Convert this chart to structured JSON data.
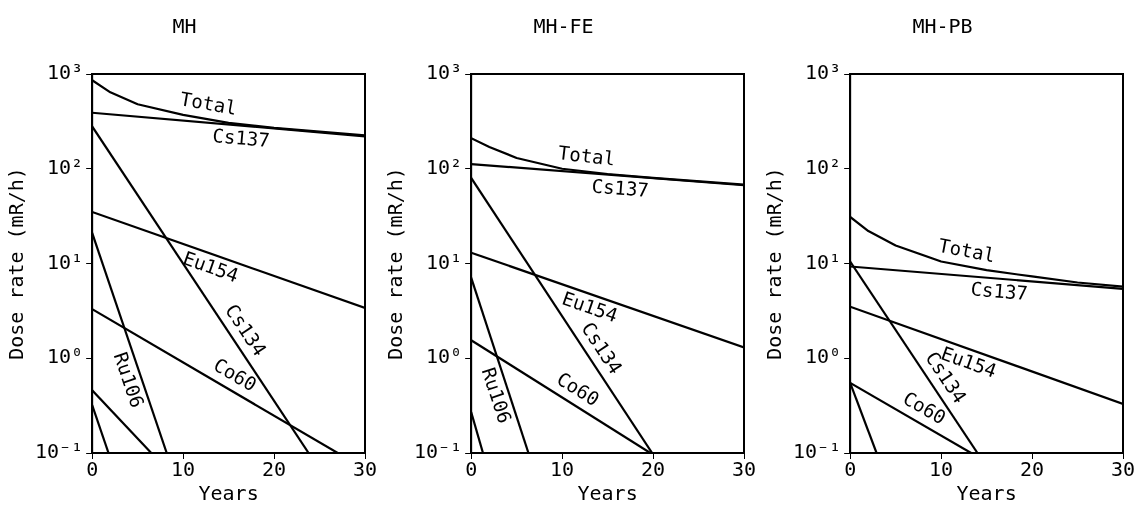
{
  "chart_data": [
    {
      "type": "line",
      "title": "MH",
      "xlabel": "Years",
      "ylabel": "Dose rate (mR/h)",
      "log": "y",
      "grid": false,
      "xlim": [
        0,
        30
      ],
      "xticks": [
        0,
        10,
        20,
        30
      ],
      "ylim": [
        0.1,
        1000
      ],
      "yticks": [
        {
          "value": 0.1,
          "label": "10⁻¹"
        },
        {
          "value": 1,
          "label": "10⁰"
        },
        {
          "value": 10,
          "label": "10¹"
        },
        {
          "value": 100,
          "label": "10²"
        },
        {
          "value": 1000,
          "label": "10³"
        }
      ],
      "series": [
        {
          "name": "Total",
          "color": "#000000",
          "x": [
            0,
            2,
            5,
            10,
            15,
            20,
            30
          ],
          "values": [
            860,
            640,
            480,
            370,
            305,
            270,
            225
          ]
        },
        {
          "name": "Cs137",
          "color": "#000000",
          "x": [
            0,
            30
          ],
          "values": [
            390,
            220
          ]
        },
        {
          "name": "Cs134",
          "color": "#000000",
          "x": [
            0,
            23.8
          ],
          "values": [
            280,
            0.1
          ]
        },
        {
          "name": "Eu154",
          "color": "#000000",
          "x": [
            0,
            30
          ],
          "values": [
            35,
            3.4
          ]
        },
        {
          "name": "Co60",
          "color": "#000000",
          "x": [
            0,
            27
          ],
          "values": [
            3.3,
            0.1
          ]
        },
        {
          "name": "Ru106",
          "color": "#000000",
          "x": [
            0,
            8.2
          ],
          "values": [
            21,
            0.1
          ]
        },
        {
          "color": "#000000",
          "x": [
            0,
            6.5
          ],
          "values": [
            0.46,
            0.1
          ]
        },
        {
          "color": "#000000",
          "x": [
            0,
            1.8
          ],
          "values": [
            0.32,
            0.1
          ]
        }
      ]
    },
    {
      "type": "line",
      "title": "MH-FE",
      "xlabel": "Years",
      "ylabel": "Dose rate (mR/h)",
      "log": "y",
      "grid": false,
      "xlim": [
        0,
        30
      ],
      "xticks": [
        0,
        10,
        20,
        30
      ],
      "ylim": [
        0.1,
        1000
      ],
      "yticks": [
        {
          "value": 0.1,
          "label": "10⁻¹"
        },
        {
          "value": 1,
          "label": "10⁰"
        },
        {
          "value": 10,
          "label": "10¹"
        },
        {
          "value": 100,
          "label": "10²"
        },
        {
          "value": 1000,
          "label": "10³"
        }
      ],
      "series": [
        {
          "name": "Total",
          "color": "#000000",
          "x": [
            0,
            2,
            5,
            10,
            15,
            20,
            30
          ],
          "values": [
            210,
            170,
            130,
            100,
            88,
            80,
            68
          ]
        },
        {
          "name": "Cs137",
          "color": "#000000",
          "x": [
            0,
            30
          ],
          "values": [
            112,
            67
          ]
        },
        {
          "name": "Cs134",
          "color": "#000000",
          "x": [
            0,
            19.9
          ],
          "values": [
            80,
            0.1
          ]
        },
        {
          "name": "Eu154",
          "color": "#000000",
          "x": [
            0,
            30
          ],
          "values": [
            13,
            1.3
          ]
        },
        {
          "name": "Co60",
          "color": "#000000",
          "x": [
            0,
            19.7
          ],
          "values": [
            1.55,
            0.1
          ]
        },
        {
          "name": "Ru106",
          "color": "#000000",
          "x": [
            0,
            6.3
          ],
          "values": [
            7.1,
            0.1
          ]
        },
        {
          "color": "#000000",
          "x": [
            0,
            1.3
          ],
          "values": [
            0.27,
            0.1
          ]
        }
      ]
    },
    {
      "type": "line",
      "title": "MH-PB",
      "xlabel": "Years",
      "ylabel": "Dose rate (mR/h)",
      "log": "y",
      "grid": false,
      "xlim": [
        0,
        30
      ],
      "xticks": [
        0,
        10,
        20,
        30
      ],
      "ylim": [
        0.1,
        1000
      ],
      "yticks": [
        {
          "value": 0.1,
          "label": "10⁻¹"
        },
        {
          "value": 1,
          "label": "10⁰"
        },
        {
          "value": 10,
          "label": "10¹"
        },
        {
          "value": 100,
          "label": "10²"
        },
        {
          "value": 1000,
          "label": "10³"
        }
      ],
      "series": [
        {
          "name": "Total",
          "color": "#000000",
          "x": [
            0,
            2,
            5,
            10,
            15,
            20,
            25,
            30
          ],
          "values": [
            31,
            22,
            15.5,
            10.5,
            8.5,
            7.3,
            6.3,
            5.7
          ]
        },
        {
          "name": "Cs137",
          "color": "#000000",
          "x": [
            0,
            30
          ],
          "values": [
            9.3,
            5.4
          ]
        },
        {
          "name": "Cs134",
          "color": "#000000",
          "x": [
            0,
            14
          ],
          "values": [
            10.5,
            0.1
          ]
        },
        {
          "name": "Eu154",
          "color": "#000000",
          "x": [
            0,
            30
          ],
          "values": [
            3.5,
            0.33
          ]
        },
        {
          "name": "Co60",
          "color": "#000000",
          "x": [
            0,
            13.3
          ],
          "values": [
            0.55,
            0.1
          ]
        },
        {
          "color": "#000000",
          "x": [
            0,
            2.9
          ],
          "values": [
            0.55,
            0.1
          ]
        }
      ]
    }
  ]
}
